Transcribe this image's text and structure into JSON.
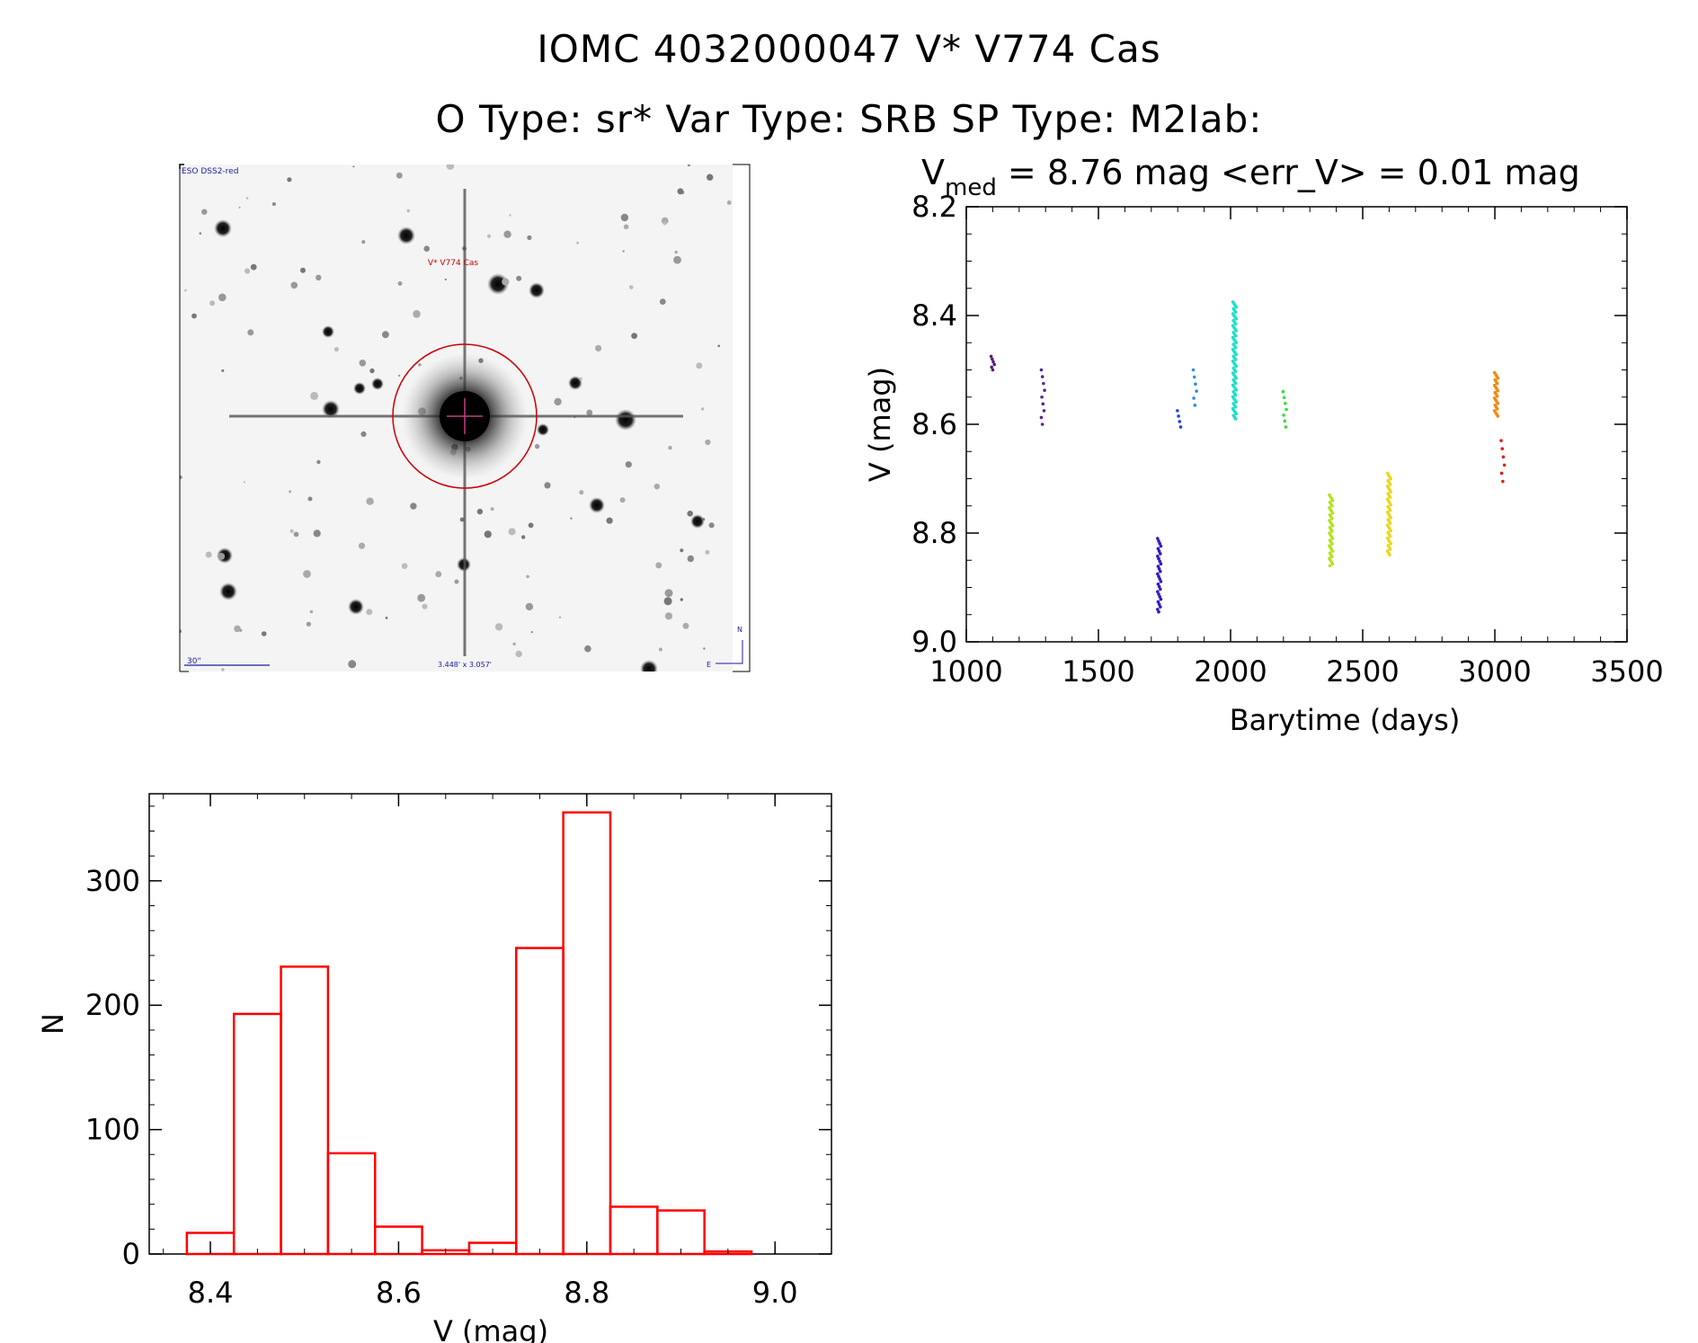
{
  "header": {
    "title_line1": "IOMC 4032000047   V* V774 Cas",
    "title_line2": "O Type: sr*  Var Type: SRB  SP Type: M2Iab:"
  },
  "thumbnail": {
    "survey_label": "ESO DSS2-red",
    "target_label": "V* V774 Cas",
    "scale_label": "30\"",
    "fov_label": "3.448' x 3.057'",
    "north_label": "N",
    "east_label": "E"
  },
  "colors": {
    "histogram": "#ff0000",
    "target_circle": "#cc0000",
    "annotation_blue": "#1a1aa0"
  },
  "chart_data": [
    {
      "type": "scatter",
      "title_prefix": "V",
      "title_sub": "med",
      "title_rest": " = 8.76 mag <err_V> = 0.01 mag",
      "xlabel": "Barytime (days)",
      "ylabel": "V (mag)",
      "xlim": [
        1000,
        3500
      ],
      "ylim": [
        9.0,
        8.2
      ],
      "xticks": [
        "1000",
        "1500",
        "2000",
        "2500",
        "3000",
        "3500"
      ],
      "yticks": [
        "8.2",
        "8.4",
        "8.6",
        "8.8",
        "9.0"
      ],
      "series": [
        {
          "name": "s1",
          "color": "#5a1a7a",
          "x": 1100,
          "ymin": 8.475,
          "ymax": 8.5,
          "n": 6
        },
        {
          "name": "s2",
          "color": "#5a22a0",
          "x": 1290,
          "ymin": 8.5,
          "ymax": 8.6,
          "n": 9
        },
        {
          "name": "s3",
          "color": "#3018c8",
          "x": 1730,
          "ymin": 8.81,
          "ymax": 8.945,
          "n": 30
        },
        {
          "name": "s4",
          "color": "#1a44e0",
          "x": 1805,
          "ymin": 8.575,
          "ymax": 8.605,
          "n": 4
        },
        {
          "name": "s5",
          "color": "#2a8ef0",
          "x": 1865,
          "ymin": 8.5,
          "ymax": 8.565,
          "n": 6
        },
        {
          "name": "s6",
          "color": "#1ee0c8",
          "x": 2015,
          "ymin": 8.375,
          "ymax": 8.59,
          "n": 70
        },
        {
          "name": "s7",
          "color": "#33e033",
          "x": 2205,
          "ymin": 8.54,
          "ymax": 8.605,
          "n": 7
        },
        {
          "name": "s8",
          "color": "#b8e020",
          "x": 2380,
          "ymin": 8.73,
          "ymax": 8.86,
          "n": 40
        },
        {
          "name": "s9",
          "color": "#e8d820",
          "x": 2600,
          "ymin": 8.69,
          "ymax": 8.84,
          "n": 45
        },
        {
          "name": "s10",
          "color": "#f08a10",
          "x": 3005,
          "ymin": 8.505,
          "ymax": 8.585,
          "n": 25
        },
        {
          "name": "s11",
          "color": "#e02018",
          "x": 3030,
          "ymin": 8.63,
          "ymax": 8.705,
          "n": 6
        }
      ]
    },
    {
      "type": "bar",
      "subtype": "histogram",
      "xlabel": "V (mag)",
      "ylabel": "N",
      "xlim": [
        8.335,
        9.06
      ],
      "ylim": [
        0,
        370
      ],
      "xticks": [
        "8.4",
        "8.6",
        "8.8",
        "9.0"
      ],
      "yticks": [
        "0",
        "100",
        "200",
        "300"
      ],
      "bin_width": 0.05,
      "bin_starts": [
        8.375,
        8.425,
        8.475,
        8.525,
        8.575,
        8.625,
        8.675,
        8.725,
        8.775,
        8.825,
        8.875,
        8.925
      ],
      "values": [
        17,
        193,
        231,
        81,
        22,
        3,
        9,
        246,
        355,
        38,
        35,
        2
      ]
    }
  ]
}
